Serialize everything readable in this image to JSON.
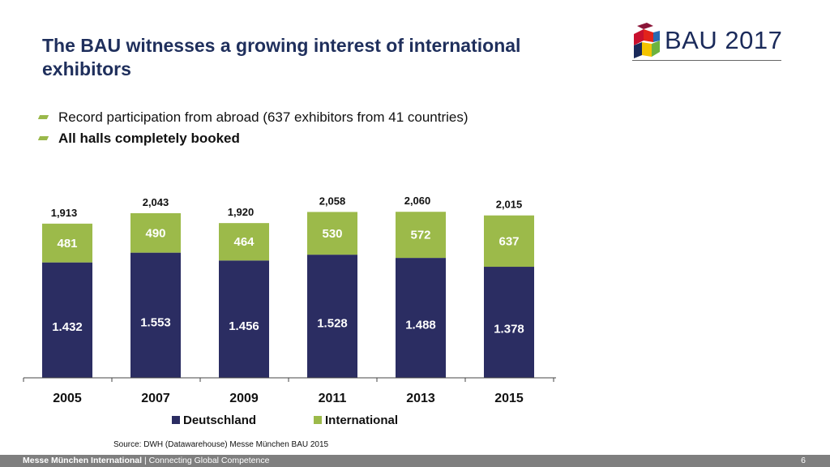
{
  "header": {
    "title": "The BAU witnesses a growing interest of international exhibitors",
    "logo_text": "BAU 2017"
  },
  "bullets": [
    "Record participation from abroad (637 exhibitors from 41 countries)",
    "All halls completely booked"
  ],
  "chart_data": {
    "type": "bar",
    "stacked": true,
    "categories": [
      "2005",
      "2007",
      "2009",
      "2011",
      "2013",
      "2015"
    ],
    "series": [
      {
        "name": "Deutschland",
        "color": "#2b2d62",
        "values": [
          1432,
          1553,
          1456,
          1528,
          1488,
          1378
        ],
        "labels": [
          "1.432",
          "1.553",
          "1.456",
          "1.528",
          "1.488",
          "1.378"
        ]
      },
      {
        "name": "International",
        "color": "#9cba4a",
        "values": [
          481,
          490,
          464,
          530,
          572,
          637
        ],
        "labels": [
          "481",
          "490",
          "464",
          "530",
          "572",
          "637"
        ]
      }
    ],
    "totals": [
      "1,913",
      "2,043",
      "1,920",
      "2,058",
      "2,060",
      "2,015"
    ],
    "ylim": [
      0,
      2200
    ],
    "legend_position": "bottom",
    "grid": false
  },
  "source": "Source: DWH (Datawarehouse)  Messe München BAU 2015",
  "footer": {
    "brand": "Messe München International",
    "tagline": "| Connecting Global Competence",
    "page_number": "6"
  }
}
